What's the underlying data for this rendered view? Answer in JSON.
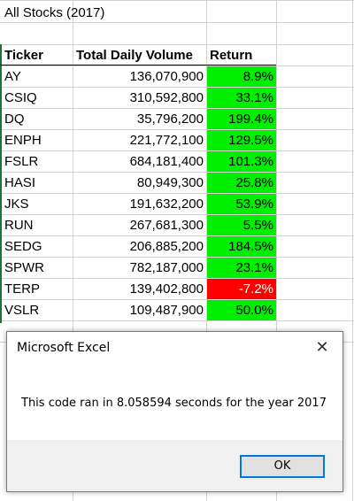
{
  "sheet": {
    "title": "All Stocks (2017)",
    "headers": {
      "ticker": "Ticker",
      "volume": "Total Daily Volume",
      "return": "Return"
    },
    "rows": [
      {
        "ticker": "AY",
        "volume": "136,070,900",
        "ret": "8.9%",
        "status": "positive"
      },
      {
        "ticker": "CSIQ",
        "volume": "310,592,800",
        "ret": "33.1%",
        "status": "positive"
      },
      {
        "ticker": "DQ",
        "volume": "35,796,200",
        "ret": "199.4%",
        "status": "positive"
      },
      {
        "ticker": "ENPH",
        "volume": "221,772,100",
        "ret": "129.5%",
        "status": "positive"
      },
      {
        "ticker": "FSLR",
        "volume": "684,181,400",
        "ret": "101.3%",
        "status": "positive"
      },
      {
        "ticker": "HASI",
        "volume": "80,949,300",
        "ret": "25.8%",
        "status": "positive"
      },
      {
        "ticker": "JKS",
        "volume": "191,632,200",
        "ret": "53.9%",
        "status": "positive"
      },
      {
        "ticker": "RUN",
        "volume": "267,681,300",
        "ret": "5.5%",
        "status": "positive"
      },
      {
        "ticker": "SEDG",
        "volume": "206,885,200",
        "ret": "184.5%",
        "status": "positive"
      },
      {
        "ticker": "SPWR",
        "volume": "782,187,000",
        "ret": "23.1%",
        "status": "positive"
      },
      {
        "ticker": "TERP",
        "volume": "139,402,800",
        "ret": "-7.2%",
        "status": "negative"
      },
      {
        "ticker": "VSLR",
        "volume": "109,487,900",
        "ret": "50.0%",
        "status": "positive"
      }
    ],
    "colors": {
      "positive": "#00ee00",
      "negative": "#ff0000"
    }
  },
  "dialog": {
    "title": "Microsoft Excel",
    "close_icon": "close-icon",
    "message": "This code ran in 8.058594 seconds for the year 2017",
    "ok_label": "OK"
  }
}
